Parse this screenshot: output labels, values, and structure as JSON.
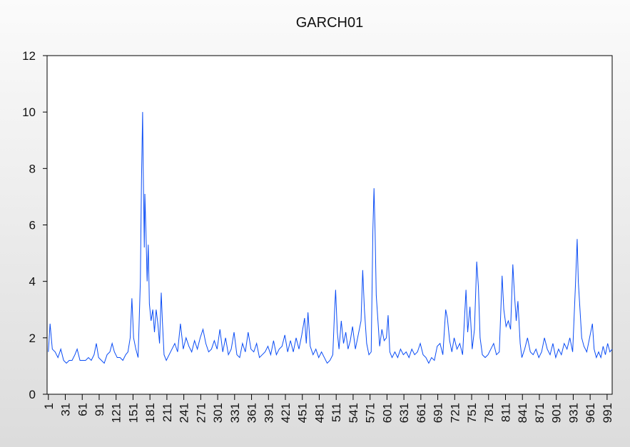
{
  "chart_data": {
    "type": "line",
    "title": "GARCH01",
    "x": [
      1,
      4,
      8,
      13,
      18,
      23,
      28,
      33,
      38,
      43,
      48,
      52,
      57,
      62,
      67,
      72,
      77,
      82,
      86,
      90,
      95,
      100,
      105,
      110,
      114,
      118,
      123,
      128,
      133,
      138,
      142,
      146,
      149,
      152,
      156,
      160,
      164,
      166,
      168,
      169,
      171,
      172,
      174,
      176,
      178,
      180,
      183,
      186,
      189,
      192,
      195,
      198,
      201,
      203,
      206,
      210,
      215,
      220,
      225,
      230,
      235,
      240,
      245,
      250,
      255,
      260,
      265,
      270,
      275,
      280,
      285,
      290,
      295,
      300,
      305,
      310,
      315,
      320,
      325,
      330,
      335,
      340,
      345,
      350,
      355,
      360,
      365,
      370,
      375,
      380,
      385,
      390,
      395,
      400,
      405,
      410,
      415,
      420,
      425,
      430,
      435,
      440,
      445,
      450,
      455,
      458,
      461,
      465,
      470,
      475,
      480,
      485,
      490,
      495,
      500,
      505,
      508,
      510,
      513,
      516,
      520,
      524,
      528,
      532,
      536,
      540,
      545,
      550,
      555,
      558,
      561,
      565,
      569,
      573,
      576,
      578,
      580,
      582,
      585,
      588,
      592,
      596,
      600,
      603,
      606,
      610,
      615,
      620,
      625,
      630,
      635,
      640,
      645,
      650,
      655,
      660,
      665,
      670,
      675,
      680,
      685,
      690,
      695,
      700,
      705,
      708,
      712,
      716,
      720,
      725,
      730,
      735,
      741,
      744,
      748,
      752,
      756,
      760,
      763,
      766,
      770,
      775,
      780,
      785,
      790,
      795,
      800,
      805,
      808,
      812,
      816,
      820,
      824,
      827,
      830,
      833,
      837,
      840,
      845,
      850,
      855,
      860,
      865,
      870,
      875,
      880,
      885,
      890,
      895,
      900,
      905,
      910,
      915,
      920,
      925,
      930,
      935,
      938,
      940,
      943,
      946,
      950,
      955,
      960,
      965,
      968,
      972,
      976,
      980,
      984,
      988,
      992,
      996,
      1000
    ],
    "values": [
      1.5,
      2.5,
      1.6,
      1.5,
      1.3,
      1.6,
      1.2,
      1.1,
      1.2,
      1.2,
      1.4,
      1.6,
      1.2,
      1.2,
      1.2,
      1.3,
      1.2,
      1.4,
      1.8,
      1.3,
      1.2,
      1.1,
      1.4,
      1.5,
      1.8,
      1.5,
      1.3,
      1.3,
      1.2,
      1.4,
      1.5,
      2.0,
      3.4,
      2.0,
      1.6,
      1.3,
      4.0,
      7.6,
      10.0,
      8.1,
      5.2,
      7.1,
      5.7,
      4.0,
      5.3,
      3.2,
      2.6,
      3.0,
      2.2,
      3.0,
      2.5,
      1.8,
      3.6,
      2.6,
      1.4,
      1.2,
      1.4,
      1.6,
      1.8,
      1.5,
      2.5,
      1.6,
      2.0,
      1.7,
      1.5,
      1.9,
      1.6,
      2.0,
      2.3,
      1.8,
      1.5,
      1.6,
      1.9,
      1.6,
      2.3,
      1.5,
      2.0,
      1.4,
      1.6,
      2.2,
      1.4,
      1.3,
      1.8,
      1.5,
      2.2,
      1.6,
      1.5,
      1.8,
      1.3,
      1.4,
      1.5,
      1.7,
      1.4,
      1.9,
      1.4,
      1.6,
      1.7,
      2.1,
      1.5,
      1.9,
      1.5,
      2.0,
      1.6,
      2.1,
      2.7,
      1.8,
      2.9,
      1.7,
      1.4,
      1.6,
      1.3,
      1.5,
      1.3,
      1.1,
      1.2,
      1.4,
      2.9,
      3.7,
      2.2,
      1.6,
      2.6,
      1.8,
      2.2,
      1.6,
      1.9,
      2.4,
      1.6,
      2.1,
      2.6,
      4.4,
      3.0,
      1.8,
      1.4,
      1.5,
      5.8,
      7.3,
      5.7,
      3.5,
      2.6,
      1.7,
      2.3,
      1.9,
      2.0,
      2.8,
      1.5,
      1.3,
      1.5,
      1.3,
      1.6,
      1.4,
      1.5,
      1.3,
      1.6,
      1.4,
      1.5,
      1.8,
      1.4,
      1.3,
      1.1,
      1.3,
      1.2,
      1.7,
      1.8,
      1.4,
      3.0,
      2.7,
      1.9,
      1.5,
      2.0,
      1.6,
      1.8,
      1.4,
      3.7,
      2.2,
      3.1,
      1.6,
      2.3,
      4.7,
      3.8,
      2.0,
      1.4,
      1.3,
      1.4,
      1.6,
      1.8,
      1.4,
      1.5,
      4.2,
      3.0,
      2.4,
      2.6,
      2.3,
      4.6,
      3.5,
      2.6,
      3.3,
      1.8,
      1.3,
      1.6,
      2.0,
      1.5,
      1.4,
      1.6,
      1.3,
      1.5,
      2.0,
      1.6,
      1.4,
      1.8,
      1.3,
      1.6,
      1.4,
      1.8,
      1.6,
      2.0,
      1.5,
      3.9,
      5.5,
      4.0,
      3.0,
      2.0,
      1.7,
      1.5,
      2.0,
      2.5,
      1.6,
      1.3,
      1.5,
      1.3,
      1.7,
      1.4,
      1.8,
      1.5,
      1.6
    ],
    "color": "#0a4cf5",
    "xlim": [
      0,
      1000
    ],
    "ylim": [
      0,
      12
    ],
    "xticks": [
      1,
      31,
      61,
      91,
      121,
      151,
      181,
      211,
      241,
      271,
      301,
      331,
      361,
      391,
      421,
      451,
      481,
      511,
      541,
      571,
      601,
      631,
      661,
      691,
      721,
      751,
      781,
      811,
      841,
      871,
      901,
      931,
      961,
      991
    ],
    "yticks": [
      0,
      2,
      4,
      6,
      8,
      10,
      12
    ]
  }
}
